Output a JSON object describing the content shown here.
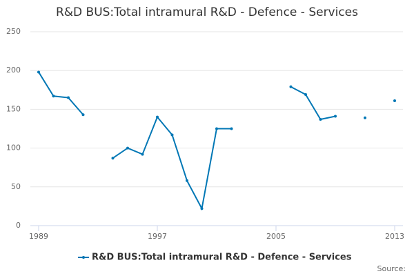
{
  "chart_data": {
    "type": "line",
    "title": "R&D BUS:Total intramural R&D - Defence - Services",
    "x": [
      1989,
      1990,
      1991,
      1992,
      1993,
      1994,
      1995,
      1996,
      1997,
      1998,
      1999,
      2000,
      2001,
      2002,
      2003,
      2004,
      2005,
      2006,
      2007,
      2008,
      2009,
      2010,
      2011,
      2012,
      2013
    ],
    "series": [
      {
        "name": "R&D BUS:Total intramural R&D - Defence - Services",
        "color": "#0077b5",
        "values": [
          198,
          167,
          165,
          143,
          null,
          87,
          100,
          92,
          140,
          117,
          58,
          22,
          125,
          125,
          null,
          null,
          null,
          179,
          169,
          137,
          141,
          null,
          139,
          null,
          161
        ]
      }
    ],
    "xlim": [
      1989,
      2013
    ],
    "xticks": [
      1989,
      1997,
      2005,
      2013
    ],
    "ylim": [
      0,
      250
    ],
    "yticks": [
      0,
      50,
      100,
      150,
      200,
      250
    ],
    "grid": true,
    "legend": "bottom",
    "source": "Source:"
  }
}
